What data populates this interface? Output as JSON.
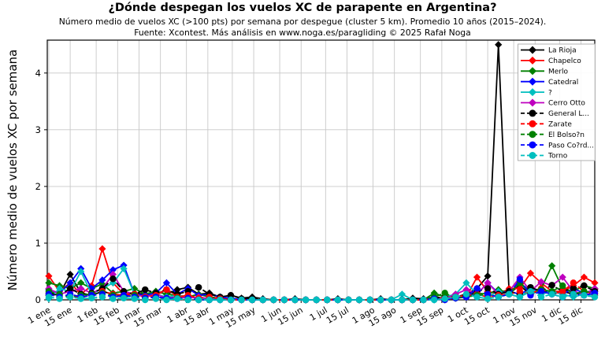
{
  "title": "¿Dónde despegan los vuelos XC de parapente en Argentina?",
  "subtitle1": "Número medio de vuelos XC (>100 pts) por semana por despegue (cluster 5 km). Promedio 10 años (2015–2024).",
  "subtitle2": "Fuente: Xcontest. Más análisis en www.noga.es/paragliding © 2025 Rafał Noga",
  "chart_data": {
    "type": "line",
    "title": "¿Dónde despegan los vuelos XC de parapente en Argentina?",
    "xlabel": "",
    "ylabel": "Número medio de vuelos XC por semana",
    "x_unit": "day_of_year_weekly",
    "xlim": [
      0,
      358
    ],
    "ylim": [
      0,
      4.58
    ],
    "yticks": [
      0,
      1,
      2,
      3,
      4
    ],
    "grid": true,
    "legend_position": "upper right",
    "xticks": {
      "days": [
        1,
        15,
        32,
        46,
        60,
        74,
        91,
        105,
        121,
        135,
        152,
        166,
        182,
        196,
        213,
        227,
        244,
        258,
        274,
        288,
        305,
        319,
        335,
        349
      ],
      "labels": [
        "1 ene",
        "15 ene",
        "1 feb",
        "15 feb",
        "1 mar",
        "15 mar",
        "1 abr",
        "15 abr",
        "1 may",
        "15 may",
        "1 jun",
        "15 jun",
        "1 jul",
        "15 jul",
        "1 ago",
        "15 ago",
        "1 sep",
        "15 sep",
        "1 oct",
        "15 oct",
        "1 nov",
        "15 nov",
        "1 dic",
        "15 dic"
      ]
    },
    "series": [
      {
        "name": "La Rioja",
        "color": "#000000",
        "dash": false,
        "marker": "diamond",
        "values": [
          0.08,
          0.1,
          0.45,
          0.12,
          0.08,
          0.15,
          0.1,
          0.08,
          0.12,
          0.1,
          0.15,
          0.1,
          0.18,
          0.22,
          0.1,
          0.12,
          0.05,
          0.08,
          0.03,
          0.05,
          0.02,
          0,
          0,
          0.02,
          0,
          0,
          0,
          0.02,
          0,
          0,
          0,
          0.02,
          0,
          0,
          0.03,
          0.02,
          0.05,
          0.03,
          0.05,
          0.1,
          0.2,
          0.42,
          4.5,
          0.12,
          0.25,
          0.1,
          0.18,
          0.1,
          0.15,
          0.1,
          0.12,
          0.18
        ]
      },
      {
        "name": "Chapelco",
        "color": "#ff0000",
        "dash": false,
        "marker": "diamond",
        "values": [
          0.42,
          0.15,
          0.3,
          0.1,
          0.25,
          0.9,
          0.3,
          0.1,
          0.12,
          0.05,
          0.1,
          0.18,
          0.08,
          0.05,
          0.1,
          0.05,
          0.03,
          0.02,
          0,
          0,
          0,
          0,
          0,
          0,
          0,
          0,
          0,
          0,
          0,
          0,
          0,
          0,
          0,
          0,
          0,
          0,
          0.02,
          0,
          0.03,
          0.05,
          0.4,
          0.15,
          0.1,
          0.2,
          0.2,
          0.47,
          0.3,
          0.15,
          0.15,
          0.25,
          0.4,
          0.3
        ]
      },
      {
        "name": "Merlo",
        "color": "#008000",
        "dash": false,
        "marker": "diamond",
        "values": [
          0.3,
          0.25,
          0.2,
          0.3,
          0.2,
          0.28,
          0.12,
          0.15,
          0.2,
          0.1,
          0.15,
          0.1,
          0.08,
          0.05,
          0.1,
          0.05,
          0.02,
          0,
          0,
          0,
          0,
          0,
          0,
          0,
          0,
          0,
          0,
          0,
          0,
          0,
          0,
          0,
          0,
          0,
          0,
          0,
          0.12,
          0.05,
          0.03,
          0.08,
          0.12,
          0.1,
          0.18,
          0.12,
          0.3,
          0.15,
          0.2,
          0.6,
          0.2,
          0.15,
          0.25,
          0.2
        ]
      },
      {
        "name": "Catedral",
        "color": "#0000ff",
        "dash": false,
        "marker": "diamond",
        "values": [
          0.18,
          0.12,
          0.3,
          0.55,
          0.2,
          0.35,
          0.53,
          0.61,
          0.1,
          0.08,
          0.12,
          0.3,
          0.1,
          0.2,
          0.08,
          0.1,
          0.05,
          0.03,
          0,
          0,
          0,
          0,
          0,
          0,
          0,
          0,
          0,
          0,
          0,
          0,
          0,
          0,
          0,
          0,
          0,
          0,
          0,
          0.02,
          0.03,
          0.05,
          0.1,
          0.3,
          0.12,
          0.15,
          0.1,
          0.2,
          0.12,
          0.15,
          0.1,
          0.2,
          0.12,
          0.15
        ]
      },
      {
        "name": "?",
        "color": "#00bfbf",
        "dash": false,
        "marker": "diamond",
        "values": [
          0.02,
          0.2,
          0.15,
          0.5,
          0.1,
          0.2,
          0.3,
          0.55,
          0.1,
          0.05,
          0.1,
          0.05,
          0.08,
          0.05,
          0.03,
          0.02,
          0,
          0,
          0,
          0,
          0,
          0,
          0,
          0,
          0,
          0,
          0,
          0,
          0,
          0,
          0,
          0,
          0,
          0.1,
          0,
          0,
          0,
          0.05,
          0.1,
          0.3,
          0.1,
          0.05,
          0.15,
          0.1,
          0.05,
          0.2,
          0.1,
          0.15,
          0.1,
          0.05,
          0.1,
          0.08
        ]
      },
      {
        "name": "Cerro Otto",
        "color": "#bf00bf",
        "dash": false,
        "marker": "diamond",
        "values": [
          0.2,
          0.1,
          0.15,
          0.2,
          0.12,
          0.2,
          0.45,
          0.15,
          0.1,
          0.05,
          0.1,
          0.03,
          0.05,
          0.03,
          0.05,
          0.02,
          0,
          0,
          0,
          0,
          0,
          0,
          0,
          0,
          0,
          0,
          0,
          0,
          0,
          0,
          0,
          0,
          0,
          0,
          0,
          0,
          0.05,
          0.02,
          0.1,
          0.18,
          0.1,
          0.3,
          0.1,
          0.15,
          0.4,
          0.15,
          0.32,
          0.25,
          0.4,
          0.15,
          0.1,
          0.2
        ]
      },
      {
        "name": "General L...",
        "color": "#000000",
        "dash": true,
        "marker": "circle",
        "values": [
          0.12,
          0.08,
          0.2,
          0.1,
          0.12,
          0.2,
          0.37,
          0.15,
          0.1,
          0.18,
          0.12,
          0.18,
          0.1,
          0.15,
          0.22,
          0.1,
          0.05,
          0.08,
          0.02,
          0.03,
          0,
          0,
          0,
          0,
          0,
          0,
          0,
          0,
          0,
          0,
          0,
          0,
          0,
          0,
          0,
          0,
          0.03,
          0.05,
          0.05,
          0.08,
          0.15,
          0.2,
          0.1,
          0.15,
          0.1,
          0.22,
          0.15,
          0.26,
          0.15,
          0.2,
          0.25,
          0.15
        ]
      },
      {
        "name": "Zarate",
        "color": "#ff0000",
        "dash": true,
        "marker": "circle",
        "values": [
          0.1,
          0.05,
          0.08,
          0.03,
          0.1,
          0.15,
          0.1,
          0.08,
          0.1,
          0.05,
          0.08,
          0.18,
          0.05,
          0.08,
          0.03,
          0.05,
          0.02,
          0,
          0,
          0,
          0,
          0,
          0,
          0,
          0,
          0,
          0,
          0,
          0,
          0,
          0,
          0,
          0,
          0,
          0,
          0,
          0.02,
          0.03,
          0.05,
          0.08,
          0.1,
          0.05,
          0.08,
          0.1,
          0.15,
          0.1,
          0.2,
          0.1,
          0.15,
          0.3,
          0.15,
          0.1
        ]
      },
      {
        "name": "El Bolso?n",
        "color": "#008000",
        "dash": true,
        "marker": "circle",
        "values": [
          0.15,
          0.1,
          0.05,
          0.08,
          0.1,
          0.12,
          0.08,
          0.05,
          0.08,
          0.03,
          0.05,
          0.02,
          0.03,
          0.02,
          0,
          0,
          0,
          0,
          0,
          0,
          0,
          0,
          0,
          0,
          0,
          0,
          0,
          0,
          0,
          0,
          0,
          0,
          0,
          0,
          0,
          0,
          0.05,
          0.12,
          0.03,
          0.05,
          0.08,
          0.1,
          0.05,
          0.1,
          0.3,
          0.12,
          0.18,
          0.15,
          0.25,
          0.1,
          0.15,
          0.12
        ]
      },
      {
        "name": "Paso Co?rd...",
        "color": "#0000ff",
        "dash": true,
        "marker": "circle",
        "values": [
          0.1,
          0.05,
          0.1,
          0.05,
          0.08,
          0.1,
          0.05,
          0.08,
          0.05,
          0.03,
          0.05,
          0.03,
          0.02,
          0.03,
          0,
          0,
          0,
          0,
          0,
          0,
          0,
          0,
          0,
          0,
          0,
          0,
          0,
          0,
          0,
          0,
          0,
          0,
          0,
          0,
          0,
          0,
          0.02,
          0,
          0.03,
          0.05,
          0.2,
          0.1,
          0.05,
          0.1,
          0.36,
          0.08,
          0.15,
          0.1,
          0.05,
          0.1,
          0.08,
          0.12
        ]
      },
      {
        "name": "Torno",
        "color": "#00bfbf",
        "dash": true,
        "marker": "circle",
        "values": [
          0.05,
          0.02,
          0.05,
          0.02,
          0.03,
          0.05,
          0.02,
          0.03,
          0.02,
          0,
          0.02,
          0,
          0.02,
          0,
          0,
          0,
          0,
          0,
          0,
          0,
          0,
          0,
          0,
          0,
          0,
          0,
          0,
          0,
          0,
          0,
          0,
          0,
          0,
          0,
          0,
          0,
          0,
          0.02,
          0.05,
          0.1,
          0.05,
          0.02,
          0.05,
          0.1,
          0.05,
          0.15,
          0.05,
          0.1,
          0.05,
          0.1,
          0.08,
          0.05
        ]
      }
    ]
  },
  "colors": {
    "grid": "#c8c8c8",
    "axis": "#000000",
    "legend_border": "#b0b0b0",
    "background": "#ffffff"
  }
}
